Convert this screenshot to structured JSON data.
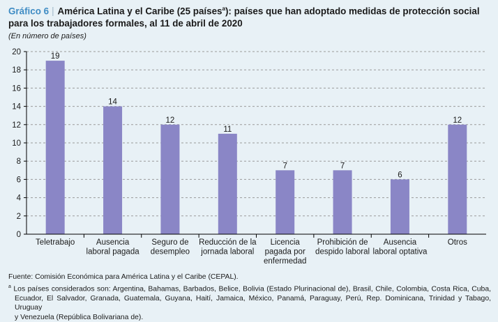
{
  "header": {
    "label": "Gráfico 6",
    "title_main": "América Latina y el Caribe (25 países",
    "title_sup": "a",
    "title_rest": "): países que han adoptado medidas de protección social",
    "title_line2": "para los trabajadores formales, al 11 de abril de 2020",
    "subtitle": "(En número de países)"
  },
  "chart_data": {
    "type": "bar",
    "categories": [
      [
        "Teletrabajo"
      ],
      [
        "Ausencia",
        "laboral pagada"
      ],
      [
        "Seguro de",
        "desempleo"
      ],
      [
        "Reducción de la",
        "jornada laboral"
      ],
      [
        "Licencia",
        "pagada por",
        "enfermedad"
      ],
      [
        "Prohibición de",
        "despido laboral"
      ],
      [
        "Ausencia",
        "laboral optativa"
      ],
      [
        "Otros"
      ]
    ],
    "values": [
      19,
      14,
      12,
      11,
      7,
      7,
      6,
      12
    ],
    "ylim": [
      0,
      20
    ],
    "yticks": [
      "0",
      "2",
      "4",
      "6",
      "8",
      "10",
      "12",
      "14",
      "16",
      "18",
      "20"
    ],
    "grid": true,
    "colors": {
      "bar": "#8a86c6",
      "grid": "#9a9a9a",
      "axis": "#000000"
    }
  },
  "footer": {
    "source": "Fuente: Comisión Económica para América Latina y el Caribe (CEPAL).",
    "note_marker": "a",
    "note_line1": "Los países considerados son: Argentina, Bahamas, Barbados, Belice, Bolivia (Estado Plurinacional de), Brasil, Chile, Colombia, Costa Rica, Cuba,",
    "note_line2": "Ecuador, El Salvador, Granada, Guatemala, Guyana, Haití, Jamaica, México, Panamá, Paraguay, Perú, Rep. Dominicana, Trinidad y Tabago, Uruguay",
    "note_line3": "y Venezuela (República Bolivariana de)."
  }
}
